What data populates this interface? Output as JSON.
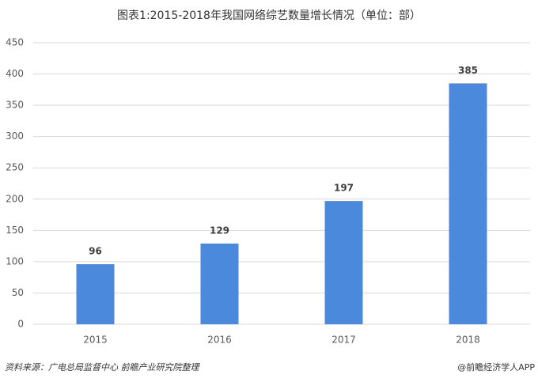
{
  "chart_data": {
    "type": "bar",
    "title": "图表1:2015-2018年我国网络综艺数量增长情况（单位：部）",
    "categories": [
      "2015",
      "2016",
      "2017",
      "2018"
    ],
    "values": [
      96,
      129,
      197,
      385
    ],
    "color": "#4a89dc",
    "ylim": [
      0,
      450
    ],
    "yticks": [
      0,
      50,
      100,
      150,
      200,
      250,
      300,
      350,
      400,
      450
    ],
    "grid": true,
    "source": "资料来源：广电总局监督中心 前瞻产业研究院整理",
    "credit": "@前瞻经济学人APP"
  }
}
